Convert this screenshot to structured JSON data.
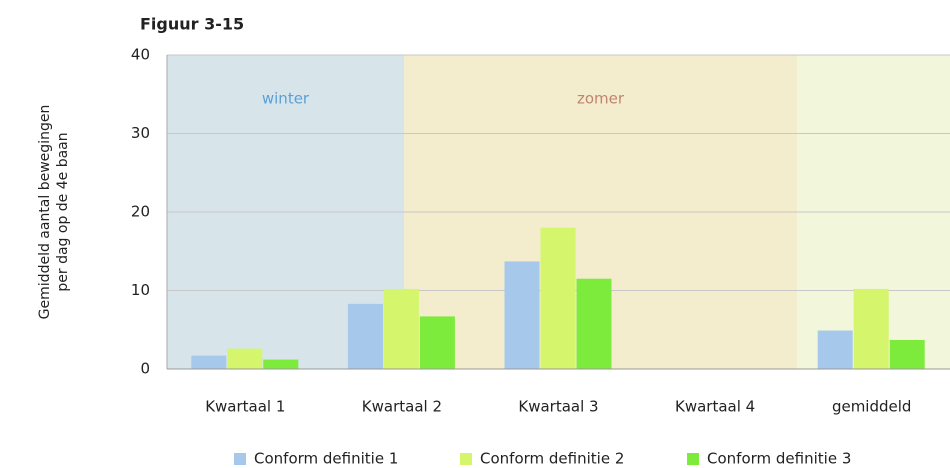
{
  "chart_data": {
    "type": "bar",
    "title": "Figuur 3-15",
    "ylabel": [
      "Gemiddeld aantal bewegingen",
      "per dag op de 4e baan"
    ],
    "categories": [
      "Kwartaal 1",
      "Kwartaal 2",
      "Kwartaal 3",
      "Kwartaal 4",
      "gemiddeld"
    ],
    "series": [
      {
        "name": "Conform definitie 1",
        "color": "#a6c8ea",
        "values": [
          1.7,
          8.3,
          13.7,
          0,
          4.9
        ]
      },
      {
        "name": "Conform definitie 2",
        "color": "#d5f56c",
        "values": [
          2.6,
          10.2,
          18,
          0,
          10.2
        ]
      },
      {
        "name": "Conform definitie 3",
        "color": "#7deb3c",
        "values": [
          1.2,
          6.7,
          11.5,
          0,
          3.7
        ]
      }
    ],
    "regions": [
      {
        "label": "winter",
        "color": "#d7e5eb",
        "label_color": "#5b9fd6"
      },
      {
        "label": "zomer",
        "color": "#f3edcd",
        "label_color": "#c08470"
      }
    ],
    "ylim": [
      0,
      40
    ],
    "yticks": [
      0,
      10,
      20,
      30,
      40
    ],
    "grid": true,
    "legend": "bottom"
  }
}
